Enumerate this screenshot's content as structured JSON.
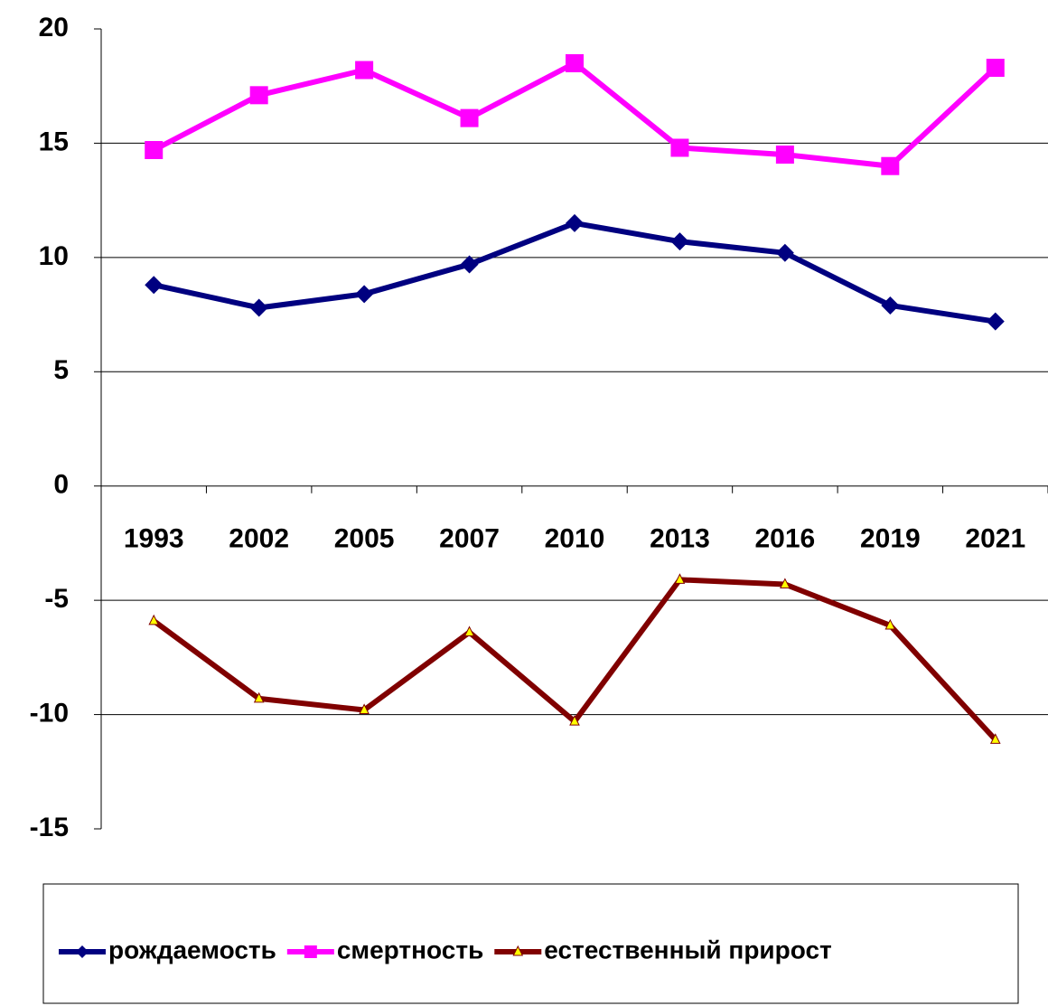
{
  "chart_data": {
    "type": "line",
    "categories": [
      "1993",
      "2002",
      "2005",
      "2007",
      "2010",
      "2013",
      "2016",
      "2019",
      "2021"
    ],
    "series": [
      {
        "name": "рождаемость",
        "color": "#000080",
        "marker": "diamond",
        "values": [
          8.8,
          7.8,
          8.4,
          9.7,
          11.5,
          10.7,
          10.2,
          7.9,
          7.2
        ]
      },
      {
        "name": "смертность",
        "color": "#ff00ff",
        "marker": "square",
        "values": [
          14.7,
          17.1,
          18.2,
          16.1,
          18.5,
          14.8,
          14.5,
          14.0,
          18.3
        ]
      },
      {
        "name": "естественный прирост",
        "color": "#800000",
        "marker": "triangle",
        "values": [
          -5.9,
          -9.3,
          -9.8,
          -6.4,
          -10.3,
          -4.1,
          -4.3,
          -6.1,
          -11.1
        ]
      }
    ],
    "ylim": [
      -15,
      20
    ],
    "yticks": [
      -15,
      -10,
      -5,
      0,
      5,
      10,
      15,
      20
    ],
    "grid": true,
    "legend": "bottom"
  }
}
